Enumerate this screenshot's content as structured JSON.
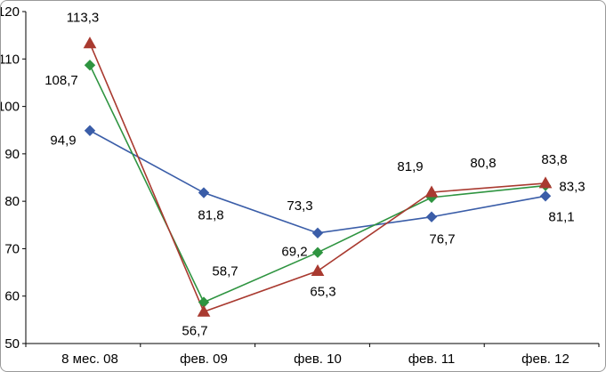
{
  "chart_data": {
    "type": "line",
    "title": "",
    "xlabel": "",
    "ylabel": "",
    "categories": [
      "8 мес. 08",
      "фев. 09",
      "фев. 10",
      "фев. 11",
      "фев. 12"
    ],
    "ylim": [
      50,
      120
    ],
    "ytick_step": 10,
    "ytick_labels": [
      "50",
      "60",
      "70",
      "80",
      "90",
      "100",
      "110",
      "120"
    ],
    "grid": false,
    "legend": "none",
    "plot_bg": "#ffffff",
    "axis_color": "#000000",
    "series": [
      {
        "name": "series-blue",
        "color": "#3a5da8",
        "marker": "diamond",
        "values": [
          94.9,
          81.8,
          73.3,
          76.7,
          81.1
        ],
        "labels": [
          "94,9",
          "81,8",
          "73,3",
          "76,7",
          "81,1"
        ],
        "label_offsets": [
          [
            -30,
            16
          ],
          [
            8,
            30
          ],
          [
            -20,
            -26
          ],
          [
            12,
            30
          ],
          [
            18,
            28
          ]
        ]
      },
      {
        "name": "series-green",
        "color": "#2e9440",
        "marker": "diamond",
        "values": [
          108.7,
          58.7,
          69.2,
          80.8,
          83.3
        ],
        "labels": [
          "108,7",
          "58,7",
          "69,2",
          "80,8",
          "83,3"
        ],
        "label_offsets": [
          [
            -32,
            22
          ],
          [
            24,
            -30
          ],
          [
            -26,
            4
          ],
          [
            58,
            -34
          ],
          [
            30,
            6
          ]
        ]
      },
      {
        "name": "series-red",
        "color": "#a93a30",
        "marker": "triangle",
        "values": [
          113.3,
          56.7,
          65.3,
          81.9,
          83.8
        ],
        "labels": [
          "113,3",
          "56,7",
          "65,3",
          "81,9",
          "83,8"
        ],
        "label_offsets": [
          [
            -8,
            -24
          ],
          [
            -10,
            26
          ],
          [
            6,
            28
          ],
          [
            -24,
            -24
          ],
          [
            10,
            -22
          ]
        ]
      }
    ]
  }
}
